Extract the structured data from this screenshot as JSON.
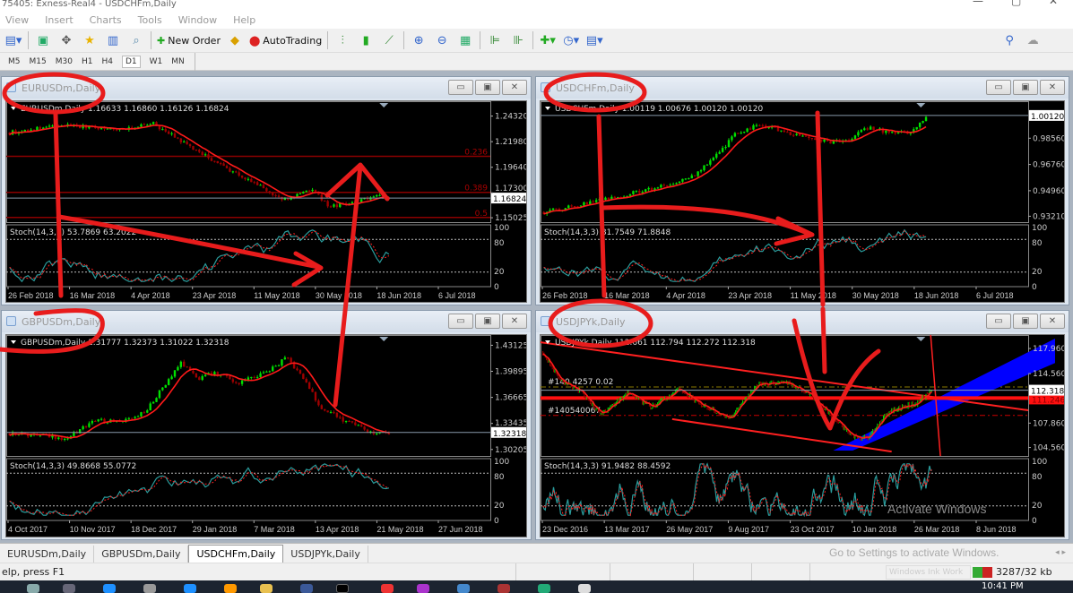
{
  "window_title": "75405: Exness-Real4 - USDCHFm,Daily",
  "menu": [
    "View",
    "Insert",
    "Charts",
    "Tools",
    "Window",
    "Help"
  ],
  "toolbar": {
    "new_order": "New Order",
    "autotrading": "AutoTrading"
  },
  "timeframes": [
    "M5",
    "M15",
    "M30",
    "H1",
    "H4",
    "D1",
    "W1",
    "MN"
  ],
  "active_timeframe": "D1",
  "colors": {
    "bull": "#00e000",
    "bear": "#a00000",
    "ma": "#ff1a1a",
    "stoch_main": "#2a9c9c",
    "stoch_signal": "#ff2020",
    "annotation": "#e81c1c",
    "channel": "#0000ff"
  },
  "charts": [
    {
      "title": "EURUSDm,Daily",
      "header": "EURUSDm,Daily  1.16633 1.16860 1.16126 1.16824",
      "ylim": [
        1.1495,
        1.2535
      ],
      "yticks": [
        "1.24320",
        "1.21980",
        "1.19640",
        "1.17300",
        "1.15025"
      ],
      "current": "1.16824",
      "path": [
        [
          0,
          1.228
        ],
        [
          0.08,
          1.232
        ],
        [
          0.15,
          1.235
        ],
        [
          0.28,
          1.231
        ],
        [
          0.38,
          1.236
        ],
        [
          0.48,
          1.214
        ],
        [
          0.58,
          1.194
        ],
        [
          0.66,
          1.179
        ],
        [
          0.72,
          1.166
        ],
        [
          0.8,
          1.177
        ],
        [
          0.84,
          1.16
        ],
        [
          0.92,
          1.165
        ],
        [
          0.97,
          1.172
        ],
        [
          1,
          1.168
        ]
      ],
      "fib": [
        {
          "label": "0.236",
          "price": 1.2064
        },
        {
          "label": "0.389",
          "price": 1.1735
        },
        {
          "label": "0.5",
          "price": 1.1505
        }
      ],
      "stoch_label": "Stoch(14,3,3) 53.7869 63.2022",
      "stoch_end": 57,
      "dates": [
        "26 Feb 2018",
        "16 Mar 2018",
        "4 Apr 2018",
        "23 Apr 2018",
        "11 May 2018",
        "30 May 2018",
        "18 Jun 2018",
        "6 Jul 2018"
      ]
    },
    {
      "title": "USDCHFm,Daily",
      "header": "USDCHFm,Daily  1.00119 1.00676 1.00120 1.00120",
      "ylim": [
        0.9305,
        1.0085
      ],
      "yticks": [
        "0.98560",
        "0.96760",
        "0.94960",
        "0.93210"
      ],
      "current": "1.00120",
      "path": [
        [
          0,
          0.935
        ],
        [
          0.1,
          0.94
        ],
        [
          0.2,
          0.946
        ],
        [
          0.3,
          0.952
        ],
        [
          0.38,
          0.958
        ],
        [
          0.44,
          0.97
        ],
        [
          0.5,
          0.988
        ],
        [
          0.55,
          0.994
        ],
        [
          0.6,
          0.993
        ],
        [
          0.68,
          0.986
        ],
        [
          0.75,
          0.983
        ],
        [
          0.8,
          0.985
        ],
        [
          0.84,
          0.993
        ],
        [
          0.9,
          0.99
        ],
        [
          0.96,
          0.99
        ],
        [
          1,
          1.001
        ]
      ],
      "stoch_label": "Stoch(14,3,3) 81.7549 71.8848",
      "stoch_end": 80,
      "dates": [
        "26 Feb 2018",
        "16 Mar 2018",
        "4 Apr 2018",
        "23 Apr 2018",
        "11 May 2018",
        "30 May 2018",
        "18 Jun 2018",
        "6 Jul 2018"
      ]
    },
    {
      "title": "GBPUSDm,Daily",
      "header": "GBPUSDm,Daily  1.31777 1.32373 1.31022 1.32318",
      "ylim": [
        1.2985,
        1.4395
      ],
      "yticks": [
        "1.43125",
        "1.39895",
        "1.36665",
        "1.33435",
        "1.30205"
      ],
      "current": "1.32318",
      "path": [
        [
          0,
          1.322
        ],
        [
          0.1,
          1.319
        ],
        [
          0.15,
          1.315
        ],
        [
          0.22,
          1.338
        ],
        [
          0.3,
          1.337
        ],
        [
          0.36,
          1.35
        ],
        [
          0.42,
          1.39
        ],
        [
          0.45,
          1.41
        ],
        [
          0.5,
          1.39
        ],
        [
          0.54,
          1.398
        ],
        [
          0.6,
          1.384
        ],
        [
          0.66,
          1.395
        ],
        [
          0.7,
          1.404
        ],
        [
          0.73,
          1.418
        ],
        [
          0.78,
          1.385
        ],
        [
          0.82,
          1.355
        ],
        [
          0.88,
          1.338
        ],
        [
          0.92,
          1.33
        ],
        [
          0.96,
          1.322
        ],
        [
          1,
          1.323
        ]
      ],
      "stoch_label": "Stoch(14,3,3) 49.8668 55.0772",
      "stoch_end": 50,
      "dates": [
        "4 Oct 2017",
        "10 Nov 2017",
        "18 Dec 2017",
        "29 Jan 2018",
        "7 Mar 2018",
        "13 Apr 2018",
        "21 May 2018",
        "27 Jun 2018"
      ]
    },
    {
      "title": "USDJPYk,Daily",
      "header": "USDJPYk,Daily  112.661 112.794 112.272 112.318",
      "ylim": [
        103.9,
        119.3
      ],
      "yticks": [
        "117.960",
        "114.560",
        "107.860",
        "104.560"
      ],
      "current": "112.318",
      "level": "111.246",
      "path": [
        [
          0,
          117.5
        ],
        [
          0.04,
          114
        ],
        [
          0.1,
          112
        ],
        [
          0.15,
          109
        ],
        [
          0.22,
          112
        ],
        [
          0.28,
          110
        ],
        [
          0.35,
          112.5
        ],
        [
          0.42,
          110
        ],
        [
          0.48,
          108.5
        ],
        [
          0.55,
          113
        ],
        [
          0.62,
          113.5
        ],
        [
          0.68,
          112
        ],
        [
          0.72,
          110
        ],
        [
          0.76,
          108
        ],
        [
          0.8,
          106
        ],
        [
          0.84,
          106
        ],
        [
          0.88,
          109
        ],
        [
          0.92,
          110
        ],
        [
          0.96,
          110.5
        ],
        [
          1,
          112.3
        ]
      ],
      "orders": [
        {
          "label": "#140 4257  0.02",
          "price": 112.75
        },
        {
          "label": "#140540067",
          "price": 108.9
        }
      ],
      "stoch_label": "Stoch(14,3,3) 91.9482 88.4592",
      "stoch_end": 91,
      "dates": [
        "23 Dec 2016",
        "13 Mar 2017",
        "26 May 2017",
        "9 Aug 2017",
        "23 Oct 2017",
        "10 Jan 2018",
        "26 Mar 2018",
        "8 Jun 2018"
      ]
    }
  ],
  "stoch_levels": [
    "100",
    "80",
    "20",
    "0"
  ],
  "tabs": [
    "EURUSDm,Daily",
    "GBPUSDm,Daily",
    "USDCHFm,Daily",
    "USDJPYk,Daily"
  ],
  "active_tab": "USDCHFm,Daily",
  "status": {
    "help": "elp, press F1",
    "ink": "Windows Ink Work",
    "traffic": "3287/32 kb"
  },
  "watermark": {
    "line1": "Activate Windows",
    "line2": "Go to Settings to activate Windows."
  },
  "clock": "10:41 PM"
}
